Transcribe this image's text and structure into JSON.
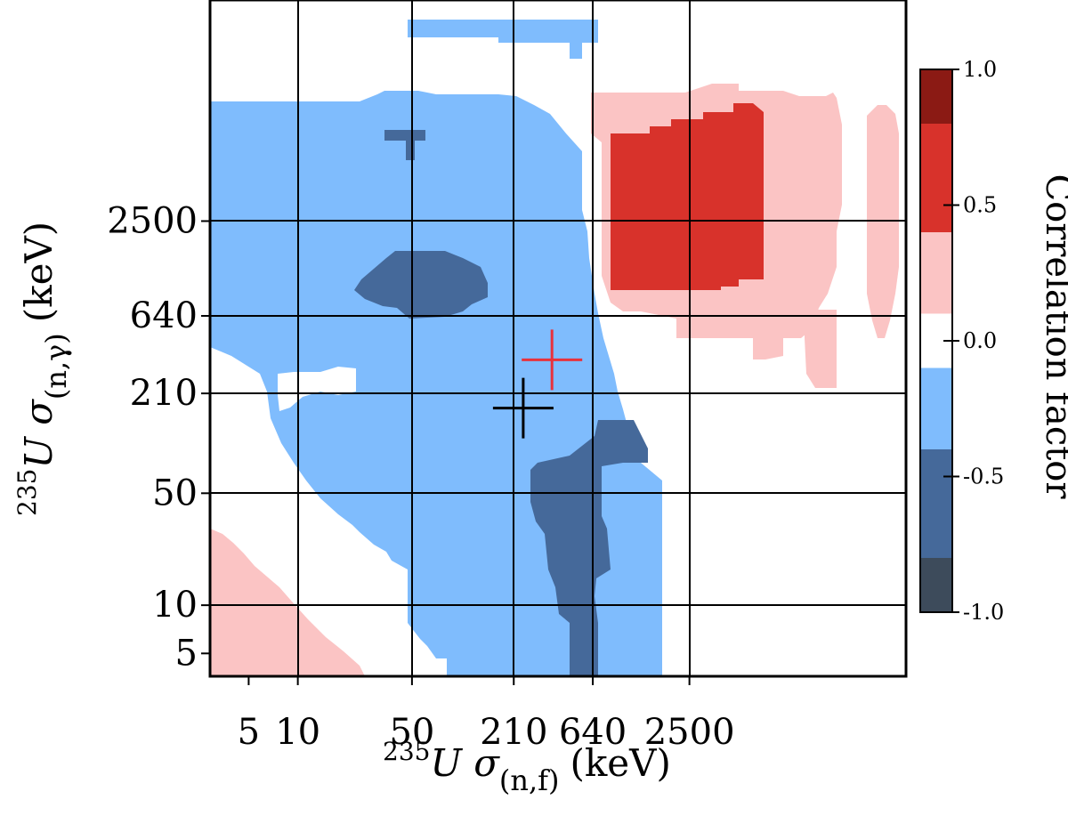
{
  "chart_data": {
    "type": "heatmap",
    "x_label": {
      "prefix": "235",
      "main": "U σ",
      "sub": "(n,f)",
      "unit": "(keV)"
    },
    "y_label": {
      "prefix": "235",
      "main": "U σ",
      "sub": "(n,γ)",
      "unit": "(keV)"
    },
    "scale": "log",
    "x_ticks": [
      "5",
      "10",
      "50",
      "210",
      "640",
      "2500"
    ],
    "y_ticks": [
      "5",
      "10",
      "50",
      "210",
      "640",
      "2500"
    ],
    "grid": true,
    "colorbar": {
      "title": "Correlation factor",
      "range": [
        -1.0,
        1.0
      ],
      "tick_labels": [
        "1.0",
        "0.5",
        "0.0",
        "-0.5",
        "-1.0"
      ],
      "tick_values": [
        1.0,
        0.5,
        0.0,
        -0.5,
        -1.0
      ],
      "bins": [
        {
          "from": 0.8,
          "to": 1.0,
          "color": "#8b1a14"
        },
        {
          "from": 0.4,
          "to": 0.8,
          "color": "#d8322b"
        },
        {
          "from": 0.1,
          "to": 0.4,
          "color": "#fbc4c4"
        },
        {
          "from": -0.1,
          "to": 0.1,
          "color": "#ffffff"
        },
        {
          "from": -0.4,
          "to": -0.1,
          "color": "#7fbcfd"
        },
        {
          "from": -0.8,
          "to": -0.4,
          "color": "#45699a"
        },
        {
          "from": -1.0,
          "to": -0.8,
          "color": "#3d4b5b"
        }
      ]
    },
    "regions": [
      {
        "sign": "negative",
        "level": "moderate",
        "color": "#7fbcfd",
        "description": "large anti-correlated block, σ(n,f) < ~600 keV"
      },
      {
        "sign": "negative",
        "level": "strong",
        "color": "#45699a",
        "x_center_keV": 55,
        "y_center_keV": 550
      },
      {
        "sign": "negative",
        "level": "strong",
        "color": "#45699a",
        "x_center_keV": 300,
        "y_center_keV": 30
      },
      {
        "sign": "positive",
        "level": "strong",
        "color": "#d8322b",
        "x_range_keV": [
          640,
          2800
        ],
        "y_range_keV": [
          640,
          3500
        ]
      },
      {
        "sign": "positive",
        "level": "weak",
        "color": "#fbc4c4",
        "description": "halo around strong positive block"
      },
      {
        "sign": "positive",
        "level": "weak",
        "color": "#fbc4c4",
        "description": "low-energy corner"
      }
    ],
    "markers": [
      {
        "symbol": "+",
        "color": "#000000",
        "x_keV": 240,
        "y_keV": 170
      },
      {
        "symbol": "+",
        "color": "#e8323c",
        "x_keV": 360,
        "y_keV": 340
      }
    ]
  }
}
